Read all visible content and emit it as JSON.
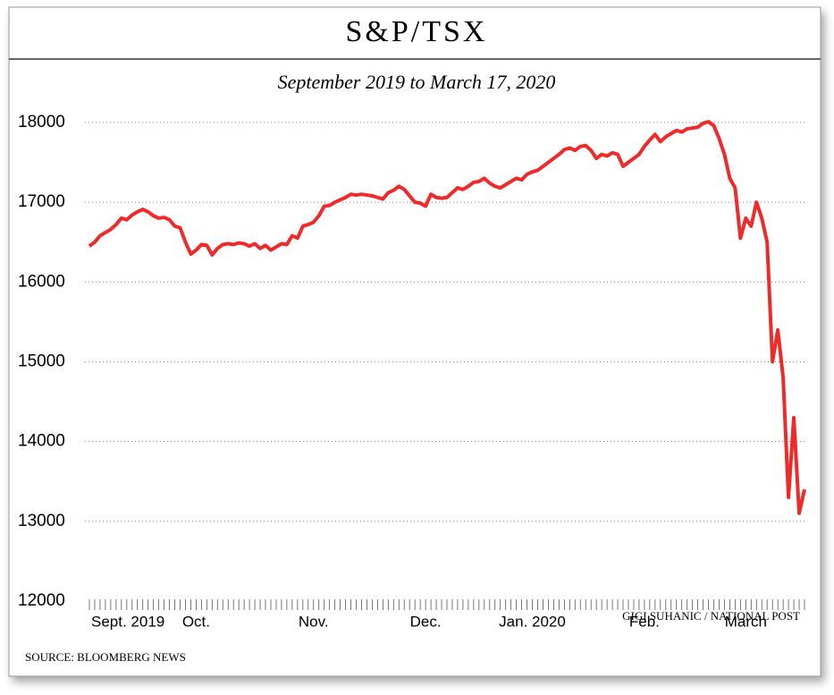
{
  "chart_data": {
    "type": "line",
    "title": "S&P/TSX",
    "subtitle": "September 2019 to March 17, 2020",
    "source": "SOURCE: BLOOMBERG NEWS",
    "credit": "GIGI SUHANIC / NATIONAL POST",
    "categories": [
      "Sept. 2019",
      null,
      null,
      null,
      null,
      null,
      null,
      null,
      null,
      null,
      null,
      null,
      null,
      null,
      null,
      null,
      null,
      null,
      null,
      null,
      "Oct.",
      null,
      null,
      null,
      null,
      null,
      null,
      null,
      null,
      null,
      null,
      null,
      null,
      null,
      null,
      null,
      null,
      null,
      null,
      null,
      null,
      null,
      "Nov.",
      null,
      null,
      null,
      null,
      null,
      null,
      null,
      null,
      null,
      null,
      null,
      null,
      null,
      null,
      null,
      null,
      null,
      null,
      null,
      null,
      "Dec.",
      null,
      null,
      null,
      null,
      null,
      null,
      null,
      null,
      null,
      null,
      null,
      null,
      null,
      null,
      null,
      null,
      null,
      null,
      null,
      "Jan. 2020",
      null,
      null,
      null,
      null,
      null,
      null,
      null,
      null,
      null,
      null,
      null,
      null,
      null,
      null,
      null,
      null,
      null,
      null,
      null,
      null,
      "Feb.",
      null,
      null,
      null,
      null,
      null,
      null,
      null,
      null,
      null,
      null,
      null,
      null,
      null,
      null,
      null,
      null,
      null,
      null,
      "March",
      null,
      null,
      null,
      null,
      null,
      null,
      null,
      null,
      null,
      null,
      null
    ],
    "series": [
      {
        "name": "S&P/TSX",
        "color": "#ee2a2a",
        "values": [
          16450,
          16500,
          16580,
          16620,
          16660,
          16720,
          16800,
          16780,
          16840,
          16880,
          16910,
          16880,
          16830,
          16800,
          16810,
          16780,
          16700,
          16680,
          16500,
          16350,
          16400,
          16470,
          16460,
          16340,
          16420,
          16470,
          16480,
          16470,
          16490,
          16480,
          16450,
          16480,
          16420,
          16460,
          16400,
          16440,
          16480,
          16470,
          16580,
          16550,
          16700,
          16720,
          16750,
          16830,
          16950,
          16960,
          17000,
          17030,
          17060,
          17100,
          17090,
          17100,
          17090,
          17080,
          17060,
          17040,
          17120,
          17150,
          17200,
          17160,
          17080,
          17000,
          16990,
          16950,
          17100,
          17060,
          17050,
          17060,
          17120,
          17180,
          17160,
          17200,
          17250,
          17260,
          17300,
          17240,
          17200,
          17180,
          17220,
          17260,
          17300,
          17280,
          17350,
          17380,
          17400,
          17450,
          17500,
          17550,
          17600,
          17660,
          17680,
          17650,
          17700,
          17710,
          17650,
          17550,
          17600,
          17580,
          17620,
          17600,
          17450,
          17500,
          17550,
          17600,
          17700,
          17780,
          17850,
          17760,
          17820,
          17860,
          17900,
          17880,
          17920,
          17930,
          17940,
          17990,
          18010,
          17960,
          17800,
          17600,
          17300,
          17180,
          16550,
          16800,
          16700,
          17000,
          16800,
          16500,
          15000,
          15400,
          14800,
          13300,
          14300,
          13100,
          13400
        ]
      }
    ],
    "ylim": [
      12000,
      18100
    ],
    "yticks": [
      12000,
      13000,
      14000,
      15000,
      16000,
      17000,
      18000
    ],
    "grid": true
  }
}
